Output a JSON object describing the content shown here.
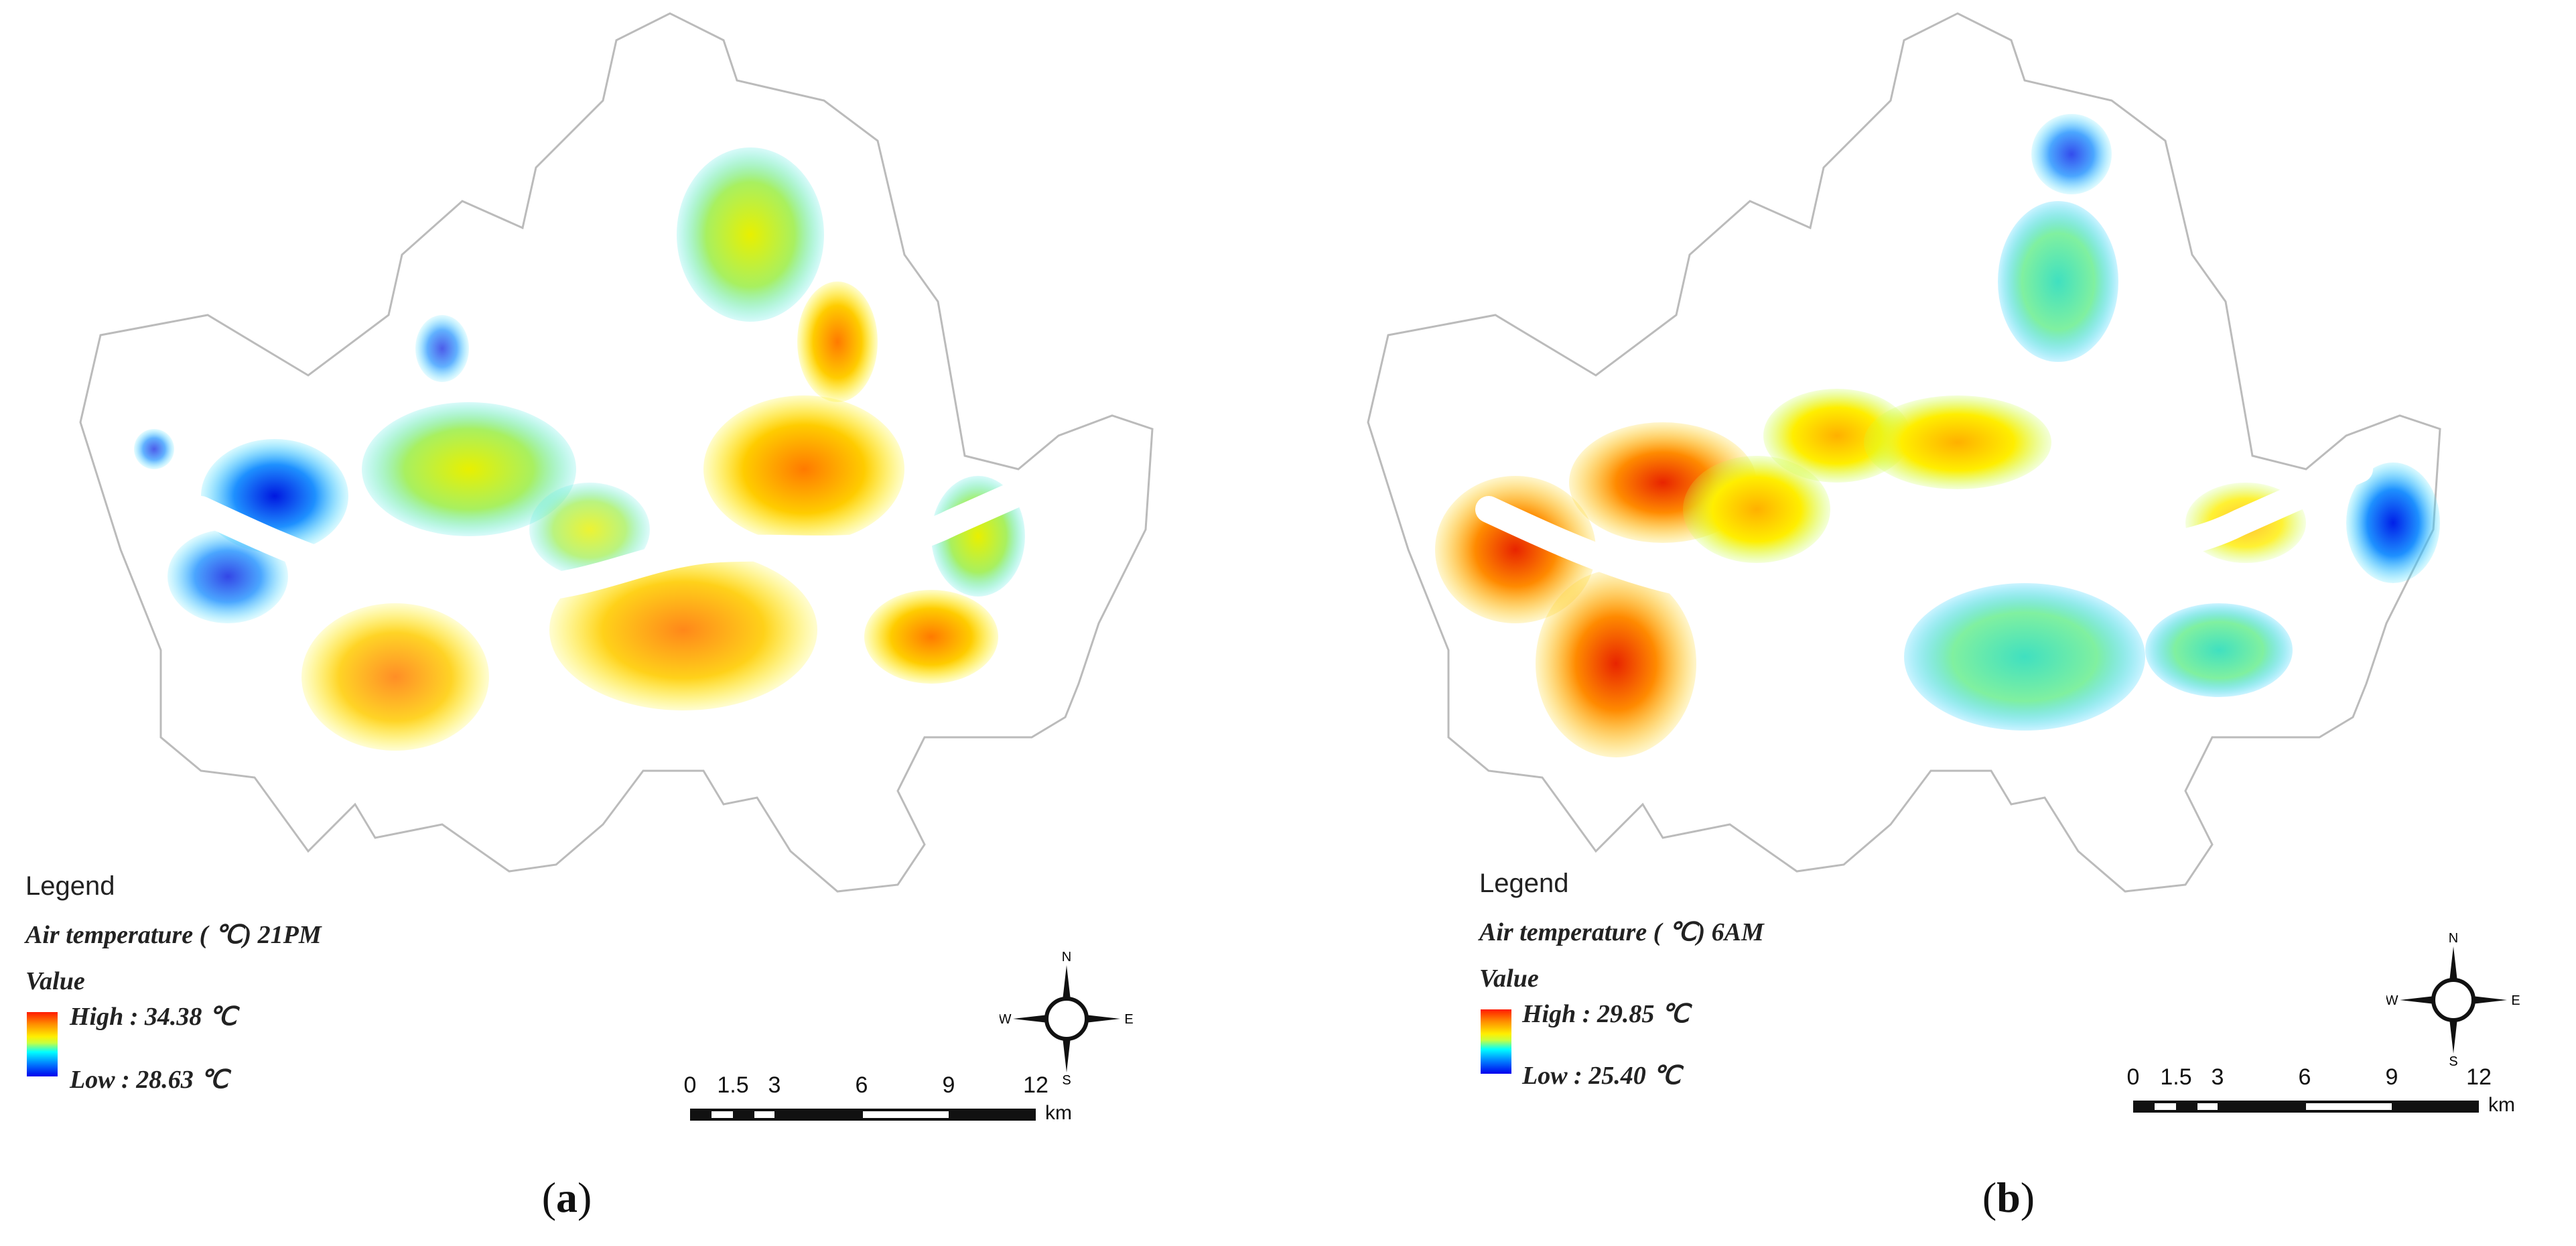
{
  "panels": [
    {
      "id": "a",
      "caption_open": "(",
      "caption_letter": "a",
      "caption_close": ")",
      "legend_title": "Legend",
      "layer_label": "Air temperature ( ℃) 21PM",
      "value_label": "Value",
      "high_label": "High : 34.38 ℃",
      "low_label": "Low : 28.63 ℃",
      "high_value": 34.38,
      "low_value": 28.63,
      "scale_ticks": [
        "0",
        "1.5",
        "3",
        "6",
        "9",
        "12"
      ],
      "scale_unit": "km",
      "compass": {
        "n": "N",
        "s": "S",
        "e": "E",
        "w": "W"
      }
    },
    {
      "id": "b",
      "caption_open": "(",
      "caption_letter": "b",
      "caption_close": ")",
      "legend_title": "Legend",
      "layer_label": "Air temperature ( ℃) 6AM",
      "value_label": "Value",
      "high_label": "High : 29.85 ℃",
      "low_label": "Low : 25.40 ℃",
      "high_value": 29.85,
      "low_value": 25.4,
      "scale_ticks": [
        "0",
        "1.5",
        "3",
        "6",
        "9",
        "12"
      ],
      "scale_unit": "km",
      "compass": {
        "n": "N",
        "s": "S",
        "e": "E",
        "w": "W"
      }
    }
  ],
  "colors": {
    "high": "#ff1a00",
    "mid_high": "#ff8a00",
    "mid": "#ffee00",
    "mid_low": "#00ffff",
    "low": "#0000ee",
    "boundary": "#bbbbbb"
  }
}
